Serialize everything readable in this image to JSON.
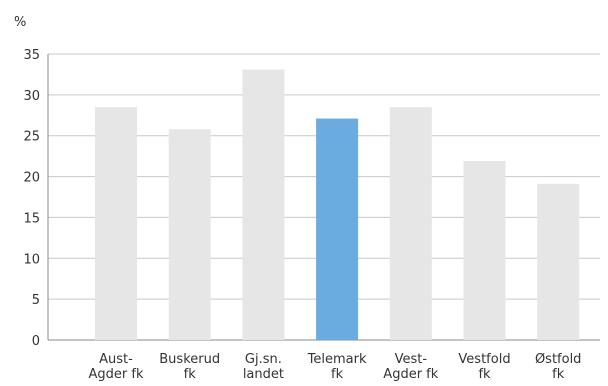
{
  "chart_data": {
    "type": "bar",
    "y_unit": "%",
    "categories": [
      [
        "Aust-",
        "Agder fk"
      ],
      [
        "Buskerud",
        "fk"
      ],
      [
        "Gj.sn.",
        "landet"
      ],
      [
        "Telemark",
        "fk"
      ],
      [
        "Vest-",
        "Agder fk"
      ],
      [
        "Vestfold",
        "fk"
      ],
      [
        "Østfold",
        "fk"
      ]
    ],
    "values": [
      28.5,
      25.8,
      33.1,
      27.1,
      28.5,
      21.9,
      19.1
    ],
    "highlight_index": 3,
    "ylim": [
      0,
      35
    ],
    "yticks": [
      0,
      5,
      10,
      15,
      20,
      25,
      30,
      35
    ],
    "grid": true,
    "colors": {
      "bar": "#e6e6e6",
      "highlight": "#6aacdf",
      "grid": "#c9c9c9",
      "axis": "#888888"
    }
  }
}
